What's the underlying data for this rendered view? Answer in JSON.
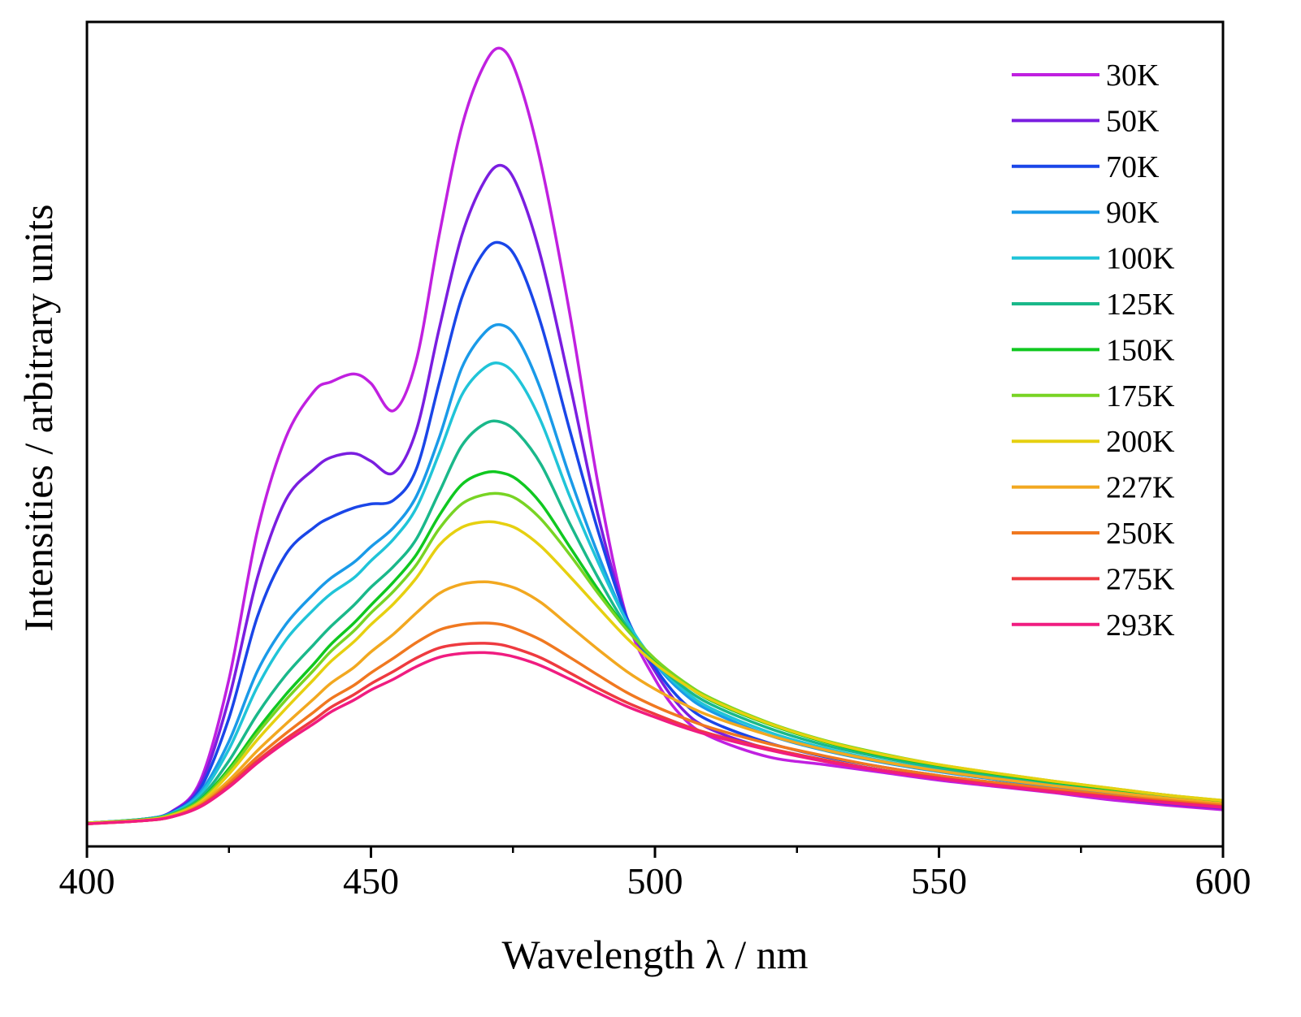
{
  "chart_data": {
    "type": "line",
    "title": "",
    "xlabel": "Wavelength λ / nm",
    "ylabel": "Intensities / arbitrary units",
    "xlim": [
      400,
      600
    ],
    "ylim": [
      0,
      1.0
    ],
    "x_ticks": [
      400,
      450,
      500,
      550,
      600
    ],
    "x_tick_labels": [
      "400",
      "450",
      "500",
      "550",
      "600"
    ],
    "x_minor_ticks": [
      425,
      475,
      525,
      575
    ],
    "y_ticks_shown": false,
    "grid": false,
    "legend_position": "top-right",
    "x": [
      400,
      410,
      415,
      420,
      425,
      430,
      435,
      440,
      443,
      447,
      450,
      454,
      458,
      462,
      466,
      470,
      473,
      476,
      480,
      485,
      490,
      495,
      500,
      505,
      510,
      520,
      530,
      540,
      550,
      560,
      570,
      580,
      590,
      600
    ],
    "series": [
      {
        "name": "30K",
        "color": "#c020e0",
        "values": [
          0.005,
          0.01,
          0.02,
          0.06,
          0.19,
          0.38,
          0.5,
          0.56,
          0.572,
          0.582,
          0.57,
          0.535,
          0.6,
          0.76,
          0.9,
          0.98,
          1.0,
          0.96,
          0.85,
          0.66,
          0.44,
          0.27,
          0.19,
          0.14,
          0.115,
          0.09,
          0.08,
          0.07,
          0.06,
          0.052,
          0.044,
          0.035,
          0.028,
          0.022
        ]
      },
      {
        "name": "50K",
        "color": "#7a1ee0",
        "values": [
          0.005,
          0.01,
          0.02,
          0.055,
          0.165,
          0.32,
          0.42,
          0.46,
          0.475,
          0.48,
          0.47,
          0.455,
          0.51,
          0.64,
          0.76,
          0.83,
          0.85,
          0.82,
          0.73,
          0.57,
          0.4,
          0.27,
          0.2,
          0.15,
          0.125,
          0.1,
          0.085,
          0.073,
          0.062,
          0.054,
          0.046,
          0.038,
          0.03,
          0.024
        ]
      },
      {
        "name": "70K",
        "color": "#1a46e8",
        "values": [
          0.005,
          0.01,
          0.019,
          0.05,
          0.14,
          0.27,
          0.35,
          0.385,
          0.398,
          0.41,
          0.415,
          0.42,
          0.46,
          0.57,
          0.68,
          0.74,
          0.75,
          0.725,
          0.645,
          0.51,
          0.38,
          0.27,
          0.205,
          0.16,
          0.135,
          0.108,
          0.09,
          0.077,
          0.066,
          0.057,
          0.049,
          0.041,
          0.033,
          0.026
        ]
      },
      {
        "name": "90K",
        "color": "#1a9ae8",
        "values": [
          0.005,
          0.01,
          0.018,
          0.045,
          0.11,
          0.2,
          0.26,
          0.3,
          0.32,
          0.34,
          0.36,
          0.385,
          0.425,
          0.5,
          0.59,
          0.635,
          0.645,
          0.625,
          0.56,
          0.45,
          0.35,
          0.265,
          0.21,
          0.172,
          0.148,
          0.118,
          0.098,
          0.083,
          0.071,
          0.061,
          0.052,
          0.044,
          0.036,
          0.029
        ]
      },
      {
        "name": "100K",
        "color": "#20c4d8",
        "values": [
          0.005,
          0.01,
          0.018,
          0.042,
          0.1,
          0.18,
          0.24,
          0.28,
          0.3,
          0.32,
          0.342,
          0.37,
          0.41,
          0.48,
          0.555,
          0.59,
          0.595,
          0.575,
          0.52,
          0.425,
          0.34,
          0.265,
          0.212,
          0.176,
          0.152,
          0.122,
          0.101,
          0.085,
          0.073,
          0.063,
          0.054,
          0.045,
          0.037,
          0.03
        ]
      },
      {
        "name": "125K",
        "color": "#1ab88a",
        "values": [
          0.005,
          0.01,
          0.017,
          0.038,
          0.085,
          0.145,
          0.195,
          0.235,
          0.258,
          0.285,
          0.308,
          0.335,
          0.37,
          0.43,
          0.49,
          0.518,
          0.52,
          0.505,
          0.465,
          0.39,
          0.32,
          0.258,
          0.212,
          0.18,
          0.157,
          0.127,
          0.105,
          0.089,
          0.076,
          0.065,
          0.056,
          0.047,
          0.039,
          0.032
        ]
      },
      {
        "name": "150K",
        "color": "#10c820",
        "values": [
          0.005,
          0.009,
          0.016,
          0.035,
          0.075,
          0.125,
          0.17,
          0.21,
          0.235,
          0.262,
          0.285,
          0.315,
          0.35,
          0.4,
          0.44,
          0.455,
          0.455,
          0.445,
          0.415,
          0.36,
          0.305,
          0.255,
          0.215,
          0.185,
          0.162,
          0.132,
          0.109,
          0.092,
          0.079,
          0.068,
          0.058,
          0.049,
          0.041,
          0.033
        ]
      },
      {
        "name": "175K",
        "color": "#78d424",
        "values": [
          0.005,
          0.009,
          0.016,
          0.034,
          0.072,
          0.12,
          0.163,
          0.202,
          0.226,
          0.252,
          0.275,
          0.303,
          0.337,
          0.383,
          0.415,
          0.427,
          0.428,
          0.42,
          0.395,
          0.35,
          0.3,
          0.254,
          0.216,
          0.187,
          0.165,
          0.134,
          0.111,
          0.094,
          0.08,
          0.069,
          0.059,
          0.05,
          0.041,
          0.034
        ]
      },
      {
        "name": "200K",
        "color": "#e6d010",
        "values": [
          0.005,
          0.009,
          0.015,
          0.032,
          0.068,
          0.112,
          0.152,
          0.19,
          0.213,
          0.238,
          0.26,
          0.287,
          0.32,
          0.362,
          0.385,
          0.392,
          0.39,
          0.382,
          0.36,
          0.322,
          0.282,
          0.243,
          0.21,
          0.184,
          0.163,
          0.133,
          0.11,
          0.093,
          0.08,
          0.069,
          0.059,
          0.05,
          0.041,
          0.034
        ]
      },
      {
        "name": "227K",
        "color": "#f2a820",
        "values": [
          0.004,
          0.008,
          0.014,
          0.03,
          0.06,
          0.098,
          0.132,
          0.165,
          0.185,
          0.205,
          0.225,
          0.248,
          0.275,
          0.3,
          0.312,
          0.315,
          0.312,
          0.305,
          0.288,
          0.258,
          0.228,
          0.2,
          0.177,
          0.158,
          0.142,
          0.118,
          0.099,
          0.084,
          0.072,
          0.062,
          0.053,
          0.045,
          0.037,
          0.03
        ]
      },
      {
        "name": "250K",
        "color": "#f07820",
        "values": [
          0.004,
          0.008,
          0.013,
          0.028,
          0.056,
          0.09,
          0.12,
          0.148,
          0.165,
          0.182,
          0.198,
          0.217,
          0.237,
          0.253,
          0.26,
          0.262,
          0.26,
          0.253,
          0.24,
          0.218,
          0.195,
          0.173,
          0.155,
          0.14,
          0.127,
          0.107,
          0.091,
          0.077,
          0.066,
          0.057,
          0.049,
          0.041,
          0.034,
          0.028
        ]
      },
      {
        "name": "275K",
        "color": "#ee3a40",
        "values": [
          0.004,
          0.008,
          0.013,
          0.027,
          0.053,
          0.085,
          0.113,
          0.138,
          0.154,
          0.17,
          0.184,
          0.2,
          0.217,
          0.23,
          0.235,
          0.236,
          0.234,
          0.228,
          0.217,
          0.198,
          0.178,
          0.16,
          0.145,
          0.131,
          0.119,
          0.101,
          0.086,
          0.073,
          0.063,
          0.054,
          0.046,
          0.039,
          0.032,
          0.026
        ]
      },
      {
        "name": "293K",
        "color": "#f01c80",
        "values": [
          0.004,
          0.008,
          0.013,
          0.026,
          0.051,
          0.082,
          0.109,
          0.133,
          0.148,
          0.163,
          0.176,
          0.19,
          0.206,
          0.218,
          0.223,
          0.224,
          0.222,
          0.217,
          0.207,
          0.19,
          0.172,
          0.155,
          0.141,
          0.128,
          0.117,
          0.099,
          0.084,
          0.072,
          0.062,
          0.053,
          0.045,
          0.038,
          0.031,
          0.025
        ]
      }
    ]
  }
}
